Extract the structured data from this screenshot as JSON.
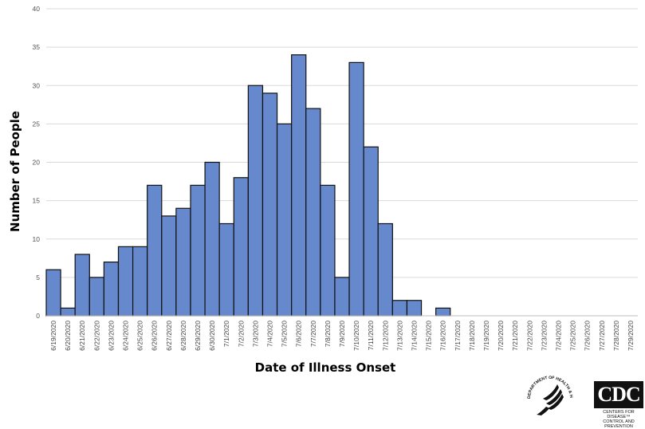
{
  "chart_data": {
    "type": "bar",
    "title": "",
    "xlabel": "Date of Illness Onset",
    "ylabel": "Number of People",
    "ylim": [
      0,
      40
    ],
    "yticks": [
      0,
      5,
      10,
      15,
      20,
      25,
      30,
      35,
      40
    ],
    "grid": true,
    "categories": [
      "6/19/2020",
      "6/20/2020",
      "6/21/2020",
      "6/22/2020",
      "6/23/2020",
      "6/24/2020",
      "6/25/2020",
      "6/26/2020",
      "6/27/2020",
      "6/28/2020",
      "6/29/2020",
      "6/30/2020",
      "7/1/2020",
      "7/2/2020",
      "7/3/2020",
      "7/4/2020",
      "7/5/2020",
      "7/6/2020",
      "7/7/2020",
      "7/8/2020",
      "7/9/2020",
      "7/10/2020",
      "7/11/2020",
      "7/12/2020",
      "7/13/2020",
      "7/14/2020",
      "7/15/2020",
      "7/16/2020",
      "7/17/2020",
      "7/18/2020",
      "7/19/2020",
      "7/20/2020",
      "7/21/2020",
      "7/22/2020",
      "7/23/2020",
      "7/24/2020",
      "7/25/2020",
      "7/26/2020",
      "7/27/2020",
      "7/28/2020",
      "7/29/2020"
    ],
    "values": [
      6,
      1,
      8,
      5,
      7,
      9,
      9,
      17,
      13,
      14,
      17,
      20,
      12,
      18,
      30,
      29,
      25,
      34,
      27,
      17,
      5,
      33,
      22,
      12,
      2,
      2,
      0,
      1,
      0,
      0,
      0,
      0,
      0,
      0,
      0,
      0,
      0,
      0,
      0,
      0,
      0
    ],
    "bar_color": "#6688cc",
    "bar_edge_color": "#111111"
  },
  "logos": {
    "hhs": "DEPARTMENT OF HEALTH & HUMAN SERVICES USA",
    "cdc_mark": "CDC",
    "cdc_sub_1": "CENTERS FOR DISEASE™",
    "cdc_sub_2": "CONTROL AND PREVENTION"
  }
}
